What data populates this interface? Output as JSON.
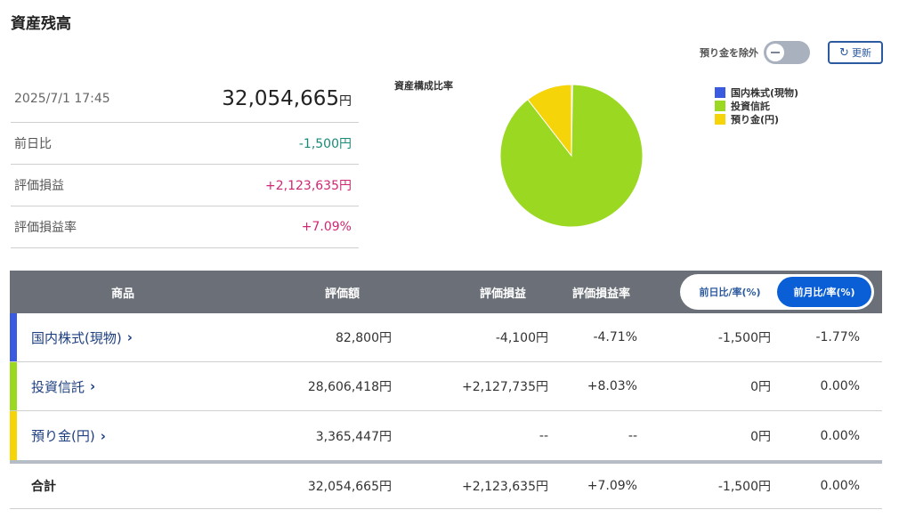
{
  "page": {
    "title": "資産残高"
  },
  "controls": {
    "toggle_label": "預り金を除外",
    "refresh_label": "更新"
  },
  "summary": {
    "datetime": "2025/7/1 17:45",
    "total_value": "32,054,665",
    "total_unit": "円",
    "rows": [
      {
        "label": "前日比",
        "value": "-1,500円"
      },
      {
        "label": "評価損益",
        "value": "+2,123,635円"
      },
      {
        "label": "評価損益率",
        "value": "+7.09%"
      }
    ]
  },
  "chart_data": {
    "type": "pie",
    "title": "資産構成比率",
    "categories": [
      "国内株式(現物)",
      "投資信託",
      "預り金(円)"
    ],
    "values": [
      82800,
      28606418,
      3365447
    ],
    "colors": [
      "#3a5be0",
      "#9ad821",
      "#f5d40a"
    ]
  },
  "table": {
    "headers": {
      "product": "商品",
      "valuation": "評価額",
      "pl": "評価損益",
      "pl_rate": "評価損益率"
    },
    "segment": {
      "day": "前日比/率(%)",
      "month": "前月比/率(%)"
    },
    "rows": [
      {
        "name": "国内株式(現物)",
        "valuation": "82,800円",
        "pl": "-4,100円",
        "pl_rate": "-4.71%",
        "change": "-1,500円",
        "change_rate": "-1.77%",
        "color": "#3a5be0"
      },
      {
        "name": "投資信託",
        "valuation": "28,606,418円",
        "pl": "+2,127,735円",
        "pl_rate": "+8.03%",
        "change": "0円",
        "change_rate": "0.00%",
        "color": "#9ad821"
      },
      {
        "name": "預り金(円)",
        "valuation": "3,365,447円",
        "pl": "--",
        "pl_rate": "--",
        "change": "0円",
        "change_rate": "0.00%",
        "color": "#f5d40a"
      }
    ],
    "total": {
      "name": "合計",
      "valuation": "32,054,665円",
      "pl": "+2,123,635円",
      "pl_rate": "+7.09%",
      "change": "-1,500円",
      "change_rate": "0.00%"
    }
  }
}
